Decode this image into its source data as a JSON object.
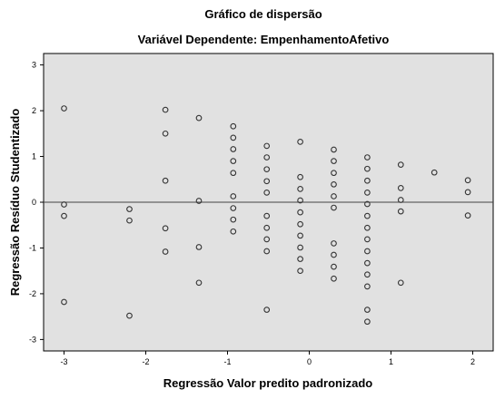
{
  "chart_data": {
    "type": "scatter",
    "title": "Gráfico de dispersão",
    "subtitle": "Variável Dependente: EmpenhamentoAfetivo",
    "xlabel": "Regressão Valor predito padronizado",
    "ylabel": "Regressão Resíduo Studentizado",
    "xlim": [
      -3.25,
      2.25
    ],
    "ylim": [
      -3.25,
      3.25
    ],
    "x_ticks": [
      -3,
      -2,
      -1,
      0,
      1,
      2
    ],
    "y_ticks": [
      -3,
      -2,
      -1,
      0,
      1,
      2,
      3
    ],
    "reference_line_y": 0,
    "grid": false,
    "colors": {
      "plot_background": "#e1e1e1",
      "marker_edge": "#333333",
      "reference_line": "#444444"
    },
    "points": [
      {
        "x": -3.0,
        "y": 2.05
      },
      {
        "x": -3.0,
        "y": -0.05
      },
      {
        "x": -3.0,
        "y": -0.3
      },
      {
        "x": -3.0,
        "y": -2.18
      },
      {
        "x": -2.2,
        "y": -0.15
      },
      {
        "x": -2.2,
        "y": -0.4
      },
      {
        "x": -2.2,
        "y": -2.48
      },
      {
        "x": -1.76,
        "y": 2.02
      },
      {
        "x": -1.76,
        "y": 1.5
      },
      {
        "x": -1.76,
        "y": 0.47
      },
      {
        "x": -1.76,
        "y": -0.57
      },
      {
        "x": -1.76,
        "y": -1.08
      },
      {
        "x": -1.35,
        "y": 1.84
      },
      {
        "x": -1.35,
        "y": 0.03
      },
      {
        "x": -1.35,
        "y": -0.98
      },
      {
        "x": -1.35,
        "y": -1.76
      },
      {
        "x": -0.93,
        "y": 1.66
      },
      {
        "x": -0.93,
        "y": 1.41
      },
      {
        "x": -0.93,
        "y": 1.16
      },
      {
        "x": -0.93,
        "y": 0.9
      },
      {
        "x": -0.93,
        "y": 0.64
      },
      {
        "x": -0.93,
        "y": 0.13
      },
      {
        "x": -0.93,
        "y": -0.13
      },
      {
        "x": -0.93,
        "y": -0.38
      },
      {
        "x": -0.93,
        "y": -0.64
      },
      {
        "x": -0.52,
        "y": 1.23
      },
      {
        "x": -0.52,
        "y": 0.98
      },
      {
        "x": -0.52,
        "y": 0.72
      },
      {
        "x": -0.52,
        "y": 0.46
      },
      {
        "x": -0.52,
        "y": 0.21
      },
      {
        "x": -0.52,
        "y": -0.3
      },
      {
        "x": -0.52,
        "y": -0.56
      },
      {
        "x": -0.52,
        "y": -0.81
      },
      {
        "x": -0.52,
        "y": -1.07
      },
      {
        "x": -0.52,
        "y": -2.35
      },
      {
        "x": -0.11,
        "y": 1.32
      },
      {
        "x": -0.11,
        "y": 0.55
      },
      {
        "x": -0.11,
        "y": 0.29
      },
      {
        "x": -0.11,
        "y": 0.04
      },
      {
        "x": -0.11,
        "y": -0.22
      },
      {
        "x": -0.11,
        "y": -0.48
      },
      {
        "x": -0.11,
        "y": -0.73
      },
      {
        "x": -0.11,
        "y": -0.99
      },
      {
        "x": -0.11,
        "y": -1.24
      },
      {
        "x": -0.11,
        "y": -1.5
      },
      {
        "x": 0.3,
        "y": 1.15
      },
      {
        "x": 0.3,
        "y": 0.9
      },
      {
        "x": 0.3,
        "y": 0.64
      },
      {
        "x": 0.3,
        "y": 0.39
      },
      {
        "x": 0.3,
        "y": 0.13
      },
      {
        "x": 0.3,
        "y": -0.12
      },
      {
        "x": 0.3,
        "y": -0.9
      },
      {
        "x": 0.3,
        "y": -1.15
      },
      {
        "x": 0.3,
        "y": -1.41
      },
      {
        "x": 0.3,
        "y": -1.67
      },
      {
        "x": 0.71,
        "y": 0.98
      },
      {
        "x": 0.71,
        "y": 0.73
      },
      {
        "x": 0.71,
        "y": 0.47
      },
      {
        "x": 0.71,
        "y": 0.21
      },
      {
        "x": 0.71,
        "y": -0.04
      },
      {
        "x": 0.71,
        "y": -0.3
      },
      {
        "x": 0.71,
        "y": -0.56
      },
      {
        "x": 0.71,
        "y": -0.81
      },
      {
        "x": 0.71,
        "y": -1.07
      },
      {
        "x": 0.71,
        "y": -1.33
      },
      {
        "x": 0.71,
        "y": -1.58
      },
      {
        "x": 0.71,
        "y": -1.84
      },
      {
        "x": 0.71,
        "y": -2.35
      },
      {
        "x": 0.71,
        "y": -2.61
      },
      {
        "x": 1.12,
        "y": 0.82
      },
      {
        "x": 1.12,
        "y": 0.31
      },
      {
        "x": 1.12,
        "y": 0.05
      },
      {
        "x": 1.12,
        "y": -0.2
      },
      {
        "x": 1.12,
        "y": -1.76
      },
      {
        "x": 1.53,
        "y": 0.65
      },
      {
        "x": 1.94,
        "y": 0.48
      },
      {
        "x": 1.94,
        "y": 0.22
      },
      {
        "x": 1.94,
        "y": -0.29
      }
    ]
  }
}
